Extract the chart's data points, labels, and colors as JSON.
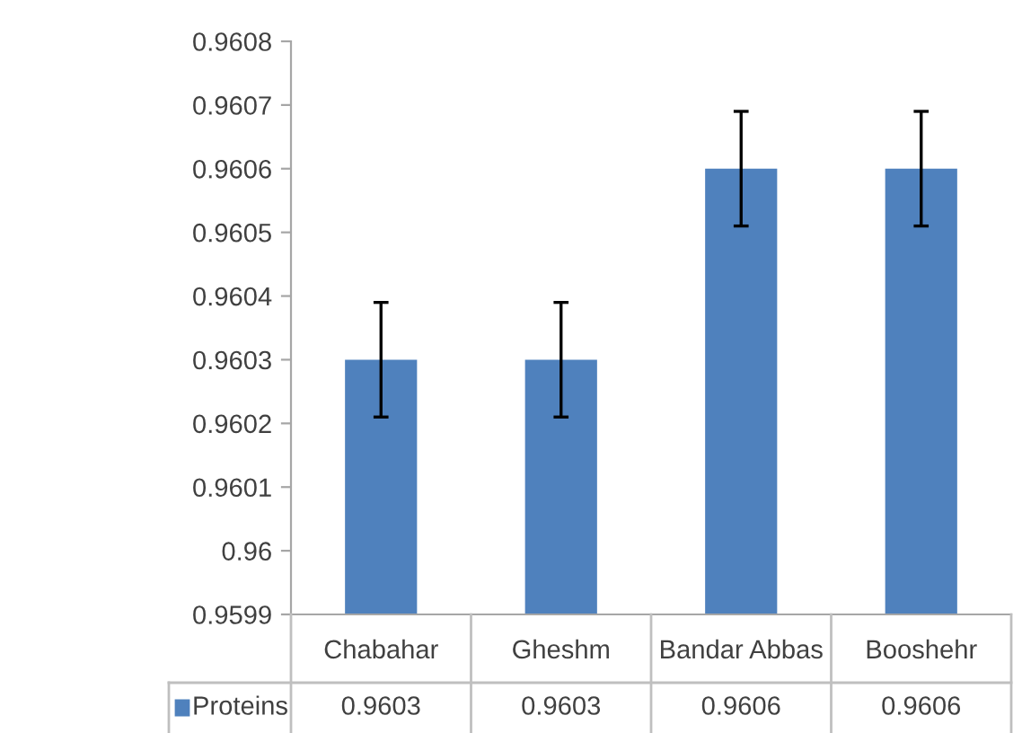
{
  "chart_data": {
    "type": "bar",
    "categories": [
      "Chabahar",
      "Gheshm",
      "Bandar Abbas",
      "Booshehr"
    ],
    "series": [
      {
        "name": "Proteins",
        "color": "#4f81bd",
        "values": [
          0.9603,
          0.9603,
          0.9606,
          0.9606
        ],
        "errors": [
          9e-05,
          9e-05,
          9e-05,
          9e-05
        ]
      }
    ],
    "ylim": [
      0.9599,
      0.9608
    ],
    "yticks": [
      0.9599,
      {
        "value": 0.96,
        "label": "0.96"
      },
      0.9601,
      0.9602,
      0.9603,
      0.9604,
      0.9605,
      0.9606,
      0.9607,
      0.9608
    ],
    "data_labels": true,
    "legend": "bottom left",
    "grid": false
  }
}
